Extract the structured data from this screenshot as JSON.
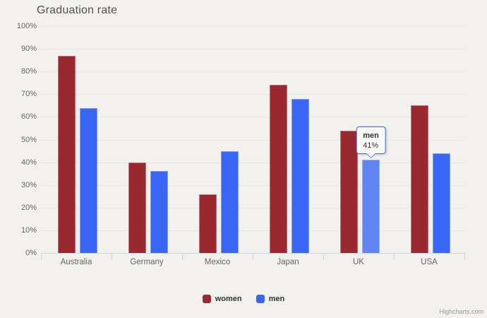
{
  "chart_data": {
    "type": "bar",
    "title": "Graduation rate",
    "categories": [
      "Australia",
      "Germany",
      "Mexico",
      "Japan",
      "UK",
      "USA"
    ],
    "series": [
      {
        "name": "women",
        "color": "#99292e",
        "values": [
          87,
          40,
          26,
          74,
          54,
          65
        ]
      },
      {
        "name": "men",
        "color": "#3966f5",
        "values": [
          64,
          36,
          45,
          68,
          41,
          44
        ]
      }
    ],
    "xlabel": "",
    "ylabel": "",
    "ylim": [
      0,
      100
    ],
    "ytick_labels": [
      "0%",
      "10%",
      "20%",
      "30%",
      "40%",
      "50%",
      "60%",
      "70%",
      "80%",
      "90%",
      "100%"
    ],
    "grid": true,
    "legend_position": "bottom-center",
    "hover_point": {
      "series": "men",
      "category": "UK",
      "value": 41,
      "hover_color": "#6085f3"
    },
    "tooltip": {
      "series_label": "men",
      "value_label": "41%"
    }
  },
  "legend": {
    "items": [
      {
        "label": "women",
        "color": "#99292e"
      },
      {
        "label": "men",
        "color": "#3966f5"
      }
    ]
  },
  "credit": {
    "label": "Highcharts.com"
  },
  "theme": {
    "background": "#f2f1ee",
    "grid_color": "#e6e6e4",
    "axis_color": "#ccd6eb",
    "axis_label_color": "#666666",
    "title_color": "#515151",
    "legend_text_color": "#333333",
    "tooltip_background": "#f9f9f9",
    "tooltip_border": "#3966f5",
    "credit_color": "#9a9a9a"
  }
}
